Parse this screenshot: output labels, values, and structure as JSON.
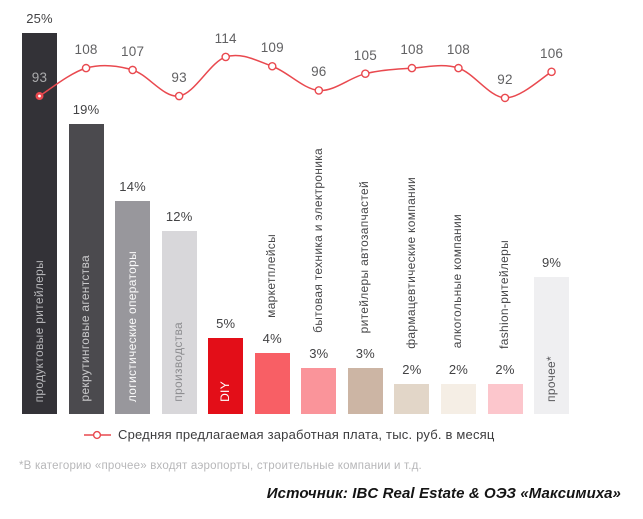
{
  "chart_data": {
    "type": "combo",
    "subtypes": [
      "bar",
      "line"
    ],
    "grid": false,
    "categories": [
      "продуктовые ритейлеры",
      "рекрутинговые агентства",
      "логистические операторы",
      "производства",
      "DIY",
      "маркетплейсы",
      "бытовая техника и электроника",
      "ритейлеры автозапчастей",
      "фармацевтические компании",
      "алкогольные компании",
      "fashion-ритейлеры",
      "прочее*"
    ],
    "series": [
      {
        "type": "bar",
        "unit": "%",
        "values": [
          25,
          19,
          14,
          12,
          5,
          4,
          3,
          3,
          2,
          2,
          2,
          9
        ],
        "labels": [
          "25%",
          "19%",
          "14%",
          "12%",
          "5%",
          "4%",
          "3%",
          "3%",
          "2%",
          "2%",
          "2%",
          "9%"
        ]
      },
      {
        "type": "line",
        "name": "Средняя предлагаемая заработная плата, тыс. руб. в месяц",
        "unit": "тыс. руб. в месяц",
        "values": [
          93,
          108,
          107,
          93,
          114,
          109,
          96,
          105,
          108,
          108,
          92,
          106
        ]
      }
    ],
    "bar_colors": [
      "#333237",
      "#4b4a4e",
      "#98979c",
      "#d8d7da",
      "#e30e18",
      "#f85f65",
      "#fa949a",
      "#ccb5a4",
      "#e2d6c8",
      "#f5eee5",
      "#fcc6cc",
      "#efeff1"
    ],
    "category_label_colors": [
      "#b5b5b8",
      "#c9c9cb",
      "#fafafa",
      "#8e8e91",
      "#ffffff",
      "#48484a",
      "#48484a",
      "#48484a",
      "#48484a",
      "#48484a",
      "#48484a",
      "#58585b"
    ],
    "category_label_inside": [
      true,
      true,
      true,
      true,
      true,
      false,
      false,
      false,
      false,
      false,
      false,
      true
    ],
    "line_color": "#e9494f",
    "pct_label_color": "#434345",
    "value_label_color": "#616163",
    "first_value_label_color": "#aaaaac",
    "legend_position": "bottom"
  },
  "legend": {
    "marker": "line-circle-icon",
    "label": "Средняя предлагаемая заработная плата, тыс. руб. в месяц"
  },
  "footnote": "*В категорию «прочее» входят аэропорты, строительные компании и т.д.",
  "source": "Источник: IBC Real Estate & ОЭЗ «Максимиха»"
}
